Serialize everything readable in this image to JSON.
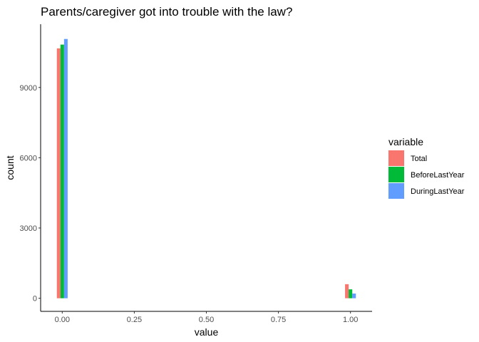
{
  "chart_data": {
    "type": "bar",
    "title": "Parents/caregiver got into trouble with the law?",
    "xlabel": "value",
    "ylabel": "count",
    "x_ticks": [
      0.0,
      0.25,
      0.5,
      0.75,
      1.0
    ],
    "x_tick_labels": [
      "0.00",
      "0.25",
      "0.50",
      "0.75",
      "1.00"
    ],
    "y_ticks": [
      0,
      3000,
      6000,
      9000
    ],
    "y_tick_labels": [
      "0",
      "3000",
      "6000",
      "9000"
    ],
    "xlim": [
      -0.075,
      1.075
    ],
    "ylim": [
      -560,
      11700
    ],
    "x": [
      0,
      1
    ],
    "series": [
      {
        "name": "Total",
        "values": [
          10670,
          600
        ],
        "color": "#F8766D"
      },
      {
        "name": "BeforeLastYear",
        "values": [
          10830,
          380
        ],
        "color": "#00BA38"
      },
      {
        "name": "DuringLastYear",
        "values": [
          11070,
          200
        ],
        "color": "#619CFF"
      }
    ],
    "legend": {
      "title": "variable",
      "position": "right"
    },
    "grid": false
  }
}
